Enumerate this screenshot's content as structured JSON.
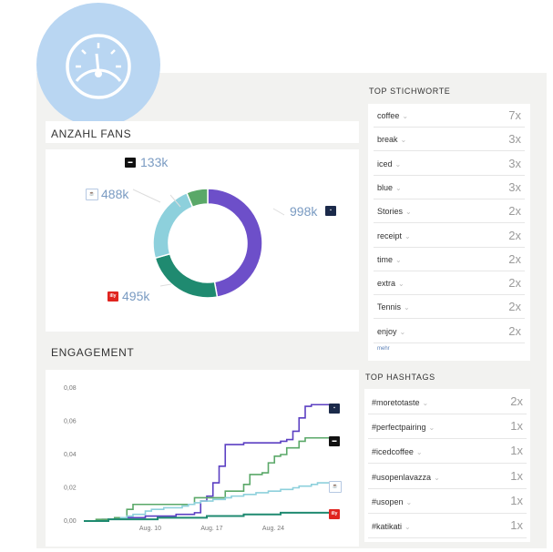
{
  "colors": {
    "tchibo": "#6d4fc9",
    "illy": "#1f8a70",
    "nespresso": "#5aa868",
    "dallmayr": "#8dd0dc",
    "gauge_bg": "#b9d6f2"
  },
  "gauge_icon": "speedometer-icon",
  "fans": {
    "title": "ANZAHL FANS",
    "brands": [
      {
        "name": "tchibo",
        "value": "998k",
        "color": "#6d4fc9",
        "amount": 998
      },
      {
        "name": "illy",
        "value": "495k",
        "color": "#1f8a70",
        "amount": 495
      },
      {
        "name": "dallmayr",
        "value": "488k",
        "color": "#8dd0dc",
        "amount": 488
      },
      {
        "name": "nespresso",
        "value": "133k",
        "color": "#5aa868",
        "amount": 133
      }
    ]
  },
  "engagement": {
    "title": "ENGAGEMENT"
  },
  "chart_data": {
    "type": "line",
    "y_ticks": [
      "0,00",
      "0,02",
      "0,04",
      "0,06",
      "0,08"
    ],
    "x_ticks": [
      "Aug. 10",
      "Aug. 17",
      "Aug. 24"
    ],
    "ylim": [
      0,
      0.08
    ],
    "x": [
      0,
      1,
      2,
      3,
      4,
      5,
      6,
      7,
      8,
      9,
      10,
      11,
      12,
      13,
      14,
      15,
      16,
      17,
      18,
      19,
      20,
      21,
      22,
      23,
      24,
      25,
      26,
      27,
      28,
      29,
      30,
      31,
      32,
      33,
      34,
      35,
      36,
      37,
      38,
      39,
      40
    ],
    "series": [
      {
        "color": "#5b3fc2",
        "values": [
          0.0,
          0.0,
          0.0,
          0.001,
          0.001,
          0.002,
          0.002,
          0.002,
          0.002,
          0.002,
          0.003,
          0.003,
          0.003,
          0.003,
          0.003,
          0.004,
          0.004,
          0.004,
          0.005,
          0.012,
          0.015,
          0.023,
          0.033,
          0.046,
          0.046,
          0.046,
          0.047,
          0.047,
          0.047,
          0.047,
          0.047,
          0.047,
          0.048,
          0.049,
          0.054,
          0.062,
          0.069,
          0.07,
          0.07,
          0.07,
          0.07
        ]
      },
      {
        "color": "#5aa868",
        "values": [
          0.0,
          0.0,
          0.001,
          0.001,
          0.001,
          0.002,
          0.002,
          0.007,
          0.01,
          0.01,
          0.01,
          0.01,
          0.01,
          0.01,
          0.01,
          0.01,
          0.01,
          0.01,
          0.014,
          0.014,
          0.014,
          0.014,
          0.014,
          0.018,
          0.018,
          0.018,
          0.022,
          0.028,
          0.028,
          0.029,
          0.035,
          0.039,
          0.04,
          0.044,
          0.044,
          0.048,
          0.05,
          0.05,
          0.05,
          0.05,
          0.05
        ]
      },
      {
        "color": "#8dd0dc",
        "values": [
          0.0,
          0.0,
          0.0,
          0.0,
          0.001,
          0.001,
          0.002,
          0.003,
          0.004,
          0.004,
          0.006,
          0.007,
          0.007,
          0.008,
          0.008,
          0.008,
          0.009,
          0.01,
          0.011,
          0.012,
          0.012,
          0.013,
          0.013,
          0.014,
          0.015,
          0.015,
          0.016,
          0.016,
          0.017,
          0.017,
          0.018,
          0.018,
          0.019,
          0.019,
          0.02,
          0.021,
          0.021,
          0.022,
          0.023,
          0.023,
          0.023
        ]
      },
      {
        "color": "#1f8a70",
        "values": [
          0.0,
          0.0,
          0.0,
          0.0,
          0.001,
          0.001,
          0.001,
          0.001,
          0.001,
          0.001,
          0.001,
          0.001,
          0.002,
          0.002,
          0.002,
          0.002,
          0.002,
          0.002,
          0.002,
          0.002,
          0.003,
          0.003,
          0.003,
          0.003,
          0.003,
          0.003,
          0.004,
          0.004,
          0.004,
          0.004,
          0.004,
          0.004,
          0.005,
          0.005,
          0.005,
          0.005,
          0.005,
          0.005,
          0.005,
          0.005,
          0.005
        ]
      }
    ]
  },
  "keywords": {
    "title": "TOP STICHWORTE",
    "items": [
      {
        "label": "coffee",
        "count": "7x"
      },
      {
        "label": "break",
        "count": "3x"
      },
      {
        "label": "iced",
        "count": "3x"
      },
      {
        "label": "blue",
        "count": "3x"
      },
      {
        "label": "Stories",
        "count": "2x"
      },
      {
        "label": "receipt",
        "count": "2x"
      },
      {
        "label": "time",
        "count": "2x"
      },
      {
        "label": "extra",
        "count": "2x"
      },
      {
        "label": "Tennis",
        "count": "2x"
      },
      {
        "label": "enjoy",
        "count": "2x"
      }
    ],
    "more": "mehr"
  },
  "hashtags": {
    "title": "TOP HASHTAGS",
    "items": [
      {
        "label": "#moretotaste",
        "count": "2x"
      },
      {
        "label": "#perfectpairing",
        "count": "1x"
      },
      {
        "label": "#icedcoffee",
        "count": "1x"
      },
      {
        "label": "#usopenlavazza",
        "count": "1x"
      },
      {
        "label": "#usopen",
        "count": "1x"
      },
      {
        "label": "#katikati",
        "count": "1x"
      }
    ]
  }
}
